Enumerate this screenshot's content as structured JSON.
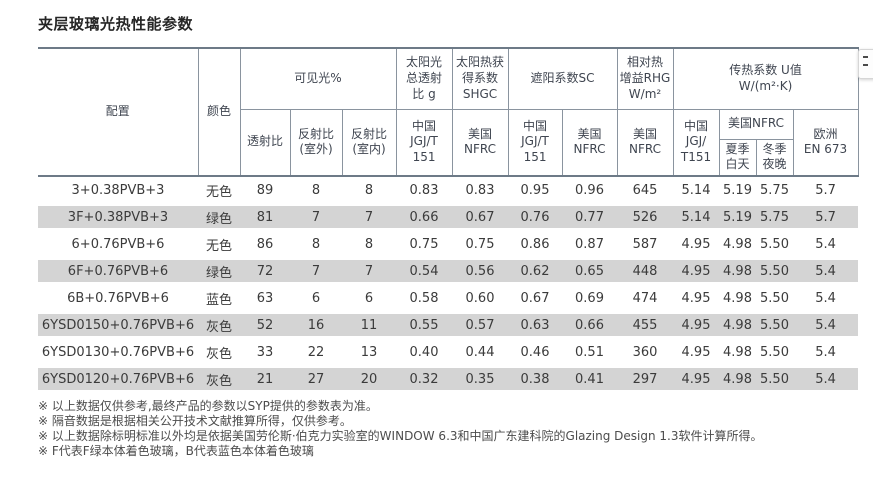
{
  "title": "夹层玻璃光热性能参数",
  "colors": {
    "outer_border": "#6d7a87",
    "inner_border": "#8a949f",
    "stripe_row": "#d4d4d4",
    "body_text": "#3b3b3b"
  },
  "table": {
    "header": {
      "config": "配置",
      "color": "颜色",
      "groups": {
        "visible_light": "可见光%",
        "solar_g": "太阳光\n总透射\n比 g",
        "shgc": "太阳热获\n得系数\nSHGC",
        "sc": "遮阳系数SC",
        "rhg": "相对热\n增益RHG\nW/m²",
        "u_value": "传热系数 U值\nW/(m²·K)"
      },
      "sub": {
        "transmittance": "透射比",
        "reflect_out": "反射比\n(室外)",
        "reflect_in": "反射比\n(室内)",
        "g_cn": "中国\nJGJ/T\n151",
        "shgc_us": "美国\nNFRC",
        "sc_cn": "中国\nJGJ/T\n151",
        "sc_us": "美国\nNFRC",
        "rhg_us": "美国\nNFRC",
        "u_cn": "中国\nJGJ/\nT151",
        "u_us": "美国NFRC",
        "u_us_summer": "夏季\n白天",
        "u_us_winter": "冬季\n夜晚",
        "u_eu": "欧洲\nEN 673"
      }
    },
    "rows": [
      {
        "cells": [
          "3+0.38PVB+3",
          "无色",
          "89",
          "8",
          "8",
          "0.83",
          "0.83",
          "0.95",
          "0.96",
          "645",
          "5.14",
          "5.19",
          "5.75",
          "5.7"
        ]
      },
      {
        "cells": [
          "3F+0.38PVB+3",
          "绿色",
          "81",
          "7",
          "7",
          "0.66",
          "0.67",
          "0.76",
          "0.77",
          "526",
          "5.14",
          "5.19",
          "5.75",
          "5.7"
        ]
      },
      {
        "cells": [
          "6+0.76PVB+6",
          "无色",
          "86",
          "8",
          "8",
          "0.75",
          "0.75",
          "0.86",
          "0.87",
          "587",
          "4.95",
          "4.98",
          "5.50",
          "5.4"
        ]
      },
      {
        "cells": [
          "6F+0.76PVB+6",
          "绿色",
          "72",
          "7",
          "7",
          "0.54",
          "0.56",
          "0.62",
          "0.65",
          "448",
          "4.95",
          "4.98",
          "5.50",
          "5.4"
        ]
      },
      {
        "cells": [
          "6B+0.76PVB+6",
          "蓝色",
          "63",
          "6",
          "6",
          "0.58",
          "0.60",
          "0.67",
          "0.69",
          "474",
          "4.95",
          "4.98",
          "5.50",
          "5.4"
        ]
      },
      {
        "cells": [
          "6YSD0150+0.76PVB+6",
          "灰色",
          "52",
          "16",
          "11",
          "0.55",
          "0.57",
          "0.63",
          "0.66",
          "455",
          "4.95",
          "4.98",
          "5.50",
          "5.4"
        ]
      },
      {
        "cells": [
          "6YSD0130+0.76PVB+6",
          "灰色",
          "33",
          "22",
          "13",
          "0.40",
          "0.44",
          "0.46",
          "0.51",
          "360",
          "4.95",
          "4.98",
          "5.50",
          "5.4"
        ]
      },
      {
        "cells": [
          "6YSD0120+0.76PVB+6",
          "灰色",
          "21",
          "27",
          "20",
          "0.32",
          "0.35",
          "0.38",
          "0.41",
          "297",
          "4.95",
          "4.98",
          "5.50",
          "5.4"
        ]
      }
    ]
  },
  "footnotes": [
    "※ 以上数据仅供参考,最终产品的参数以SYP提供的参数表为准。",
    "※ 隔音数据是根据相关公开技术文献推算所得，仅供参考。",
    "※ 以上数据除标明标准以外均是依据美国劳伦斯·伯克力实验室的WINDOW 6.3和中国广东建科院的Glazing Design 1.3软件计算所得。",
    "※ F代表F绿本体着色玻璃，B代表蓝色本体着色玻璃"
  ]
}
